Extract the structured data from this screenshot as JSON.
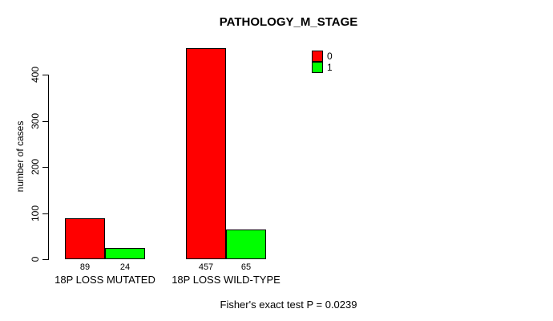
{
  "chart_data": {
    "type": "bar",
    "title": "PATHOLOGY_M_STAGE",
    "ylabel": "number of cases",
    "xlabel": "",
    "categories": [
      "18P LOSS MUTATED",
      "18P LOSS WILD-TYPE"
    ],
    "series": [
      {
        "name": "0",
        "color": "#ff0000",
        "values": [
          89,
          457
        ]
      },
      {
        "name": "1",
        "color": "#00ff00",
        "values": [
          24,
          65
        ]
      }
    ],
    "yticks": [
      0,
      100,
      200,
      300,
      400
    ],
    "ylim": [
      0,
      465
    ],
    "grid": false,
    "legend_position": "top-right",
    "bar_border_color": "#000000",
    "value_labels_shown": true,
    "annotation": "Fisher's exact test P = 0.0239"
  }
}
